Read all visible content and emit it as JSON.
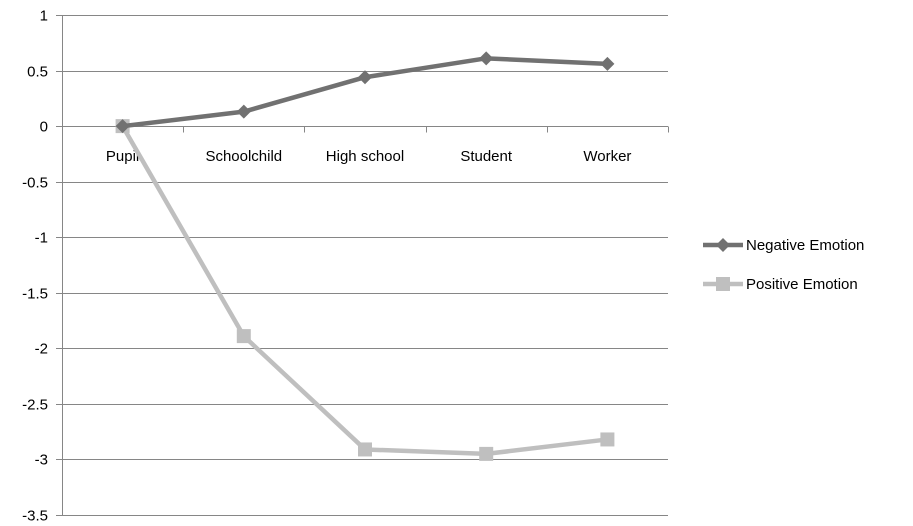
{
  "chart_data": {
    "type": "line",
    "categories": [
      "Pupil",
      "Schoolchild",
      "High school",
      "Student",
      "Worker"
    ],
    "ylim": [
      -3.5,
      1
    ],
    "yticks": [
      1,
      0.5,
      0,
      -0.5,
      -1,
      -1.5,
      -2,
      -2.5,
      -3,
      -3.5
    ],
    "ytick_labels": [
      "1",
      "0.5",
      "0",
      "-0.5",
      "-1",
      "-1.5",
      "-2",
      "-2.5",
      "-3",
      "-3.5"
    ],
    "grid": true,
    "legend_position": "right",
    "series": [
      {
        "name": "Negative Emotion",
        "values": [
          0,
          0.13,
          0.44,
          0.61,
          0.56
        ],
        "color": "#717171",
        "marker": "diamond"
      },
      {
        "name": "Positive Emotion",
        "values": [
          0,
          -1.89,
          -2.91,
          -2.95,
          -2.82
        ],
        "color": "#bfbfbf",
        "marker": "square"
      }
    ]
  }
}
